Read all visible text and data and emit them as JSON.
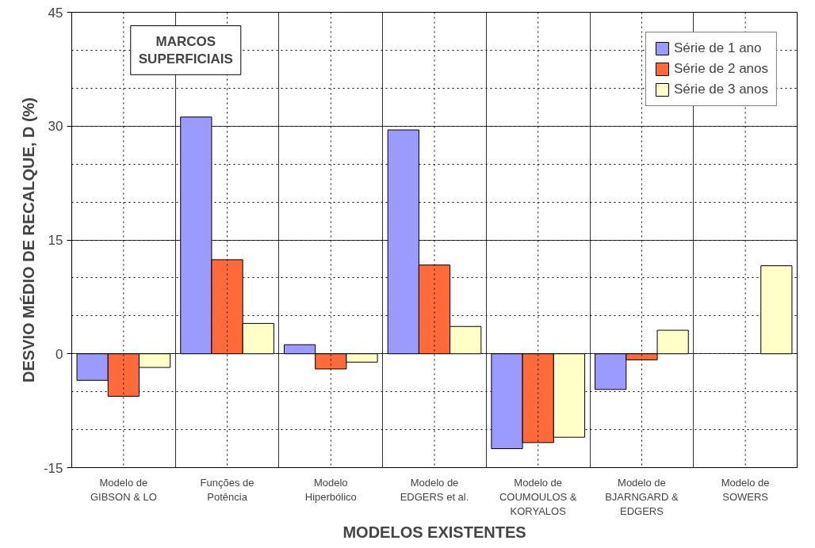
{
  "chart_data": {
    "type": "bar",
    "xlabel": "MODELOS EXISTENTES",
    "ylabel": "DESVIO MÉDIO DE RECALQUE, D (%)",
    "categories": [
      "Modelo de\nGIBSON & LO",
      "Funções de\nPotência",
      "Modelo\nHiperbólico",
      "Modelo de\nEDGERS et al.",
      "Modelo de\nCOUMOULOS &\nKORYALOS",
      "Modelo de\nBJARNGARD &\nEDGERS",
      "Modelo de\nSOWERS"
    ],
    "series": [
      {
        "name": "Série de 1 ano",
        "color": "#9a9aff",
        "values": [
          -3.5,
          31.2,
          1.2,
          29.5,
          -12.5,
          -4.7,
          null
        ]
      },
      {
        "name": "Série de 2 anos",
        "color": "#ff6a3a",
        "values": [
          -5.6,
          12.4,
          -2.0,
          11.7,
          -11.7,
          -0.8,
          null
        ]
      },
      {
        "name": "Série de 3 anos",
        "color": "#ffffc8",
        "values": [
          -1.8,
          4.0,
          -1.1,
          3.6,
          -11.0,
          3.1,
          11.6
        ]
      }
    ],
    "ylim": [
      -15,
      45
    ],
    "yticks": [
      -15,
      0,
      15,
      30,
      45
    ],
    "grid": true,
    "legend": "top right",
    "annotations": [
      "MARCOS\nSUPERFICIAIS"
    ]
  }
}
